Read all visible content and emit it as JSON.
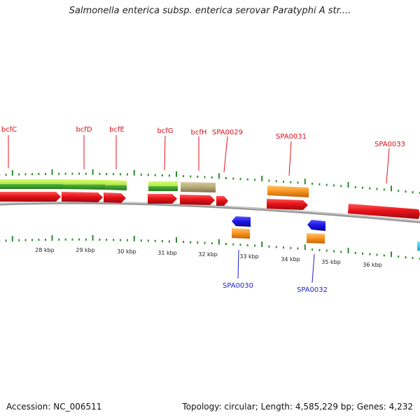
{
  "header": {
    "title": "Salmonella enterica subsp. enterica serovar Paratyphi A str...."
  },
  "footer": {
    "accession": "Accession: NC_006511",
    "summary": "Topology: circular; Length: 4,585,229 bp; Genes: 4,232"
  },
  "colors": {
    "forward_gene": "#e8121a",
    "reverse_gene_blue": "#1a14e6",
    "reverse_label": "#1f1fcf",
    "orange_feature": "#f7921e",
    "green_feature": "#3aa52a",
    "lightgreen_feature": "#b4e34a",
    "khaki_feature": "#b6a878",
    "backbone": "#8a8a8a",
    "tick": "#2e8b2e"
  },
  "top_labels": [
    {
      "text": "bcfC"
    },
    {
      "text": "bcfD"
    },
    {
      "text": "bcfE"
    },
    {
      "text": "bcfG"
    },
    {
      "text": "bcfH"
    },
    {
      "text": "SPA0029"
    },
    {
      "text": "SPA0031"
    },
    {
      "text": "SPA0033"
    }
  ],
  "bottom_labels": [
    {
      "text": "SPA0030"
    },
    {
      "text": "SPA0032"
    }
  ],
  "kbp_labels": [
    "28 kbp",
    "29 kbp",
    "30 kbp",
    "31 kbp",
    "32 kbp",
    "33 kbp",
    "34 kbp",
    "35 kbp",
    "36 kbp"
  ]
}
